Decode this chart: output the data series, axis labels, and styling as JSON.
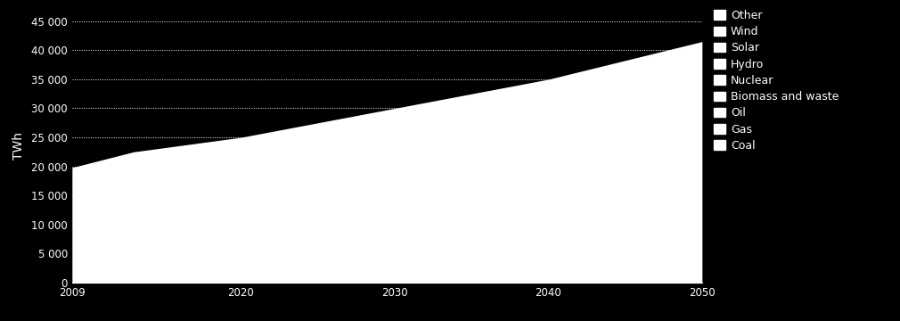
{
  "years": [
    2009,
    2013,
    2020,
    2030,
    2040,
    2050
  ],
  "total_values": [
    19800,
    22500,
    25000,
    30000,
    35000,
    41500
  ],
  "background_color": "#000000",
  "plot_bg_color": "#000000",
  "area_color": "#ffffff",
  "ylabel": "TWh",
  "ylim": [
    0,
    47000
  ],
  "yticks": [
    0,
    5000,
    10000,
    15000,
    20000,
    25000,
    30000,
    35000,
    40000,
    45000
  ],
  "ytick_labels": [
    "0",
    "5 000",
    "10 000",
    "15 000",
    "20 000",
    "25 000",
    "30 000",
    "35 000",
    "40 000",
    "45 000"
  ],
  "xticks": [
    2009,
    2020,
    2030,
    2040,
    2050
  ],
  "grid_color": "#ffffff",
  "text_color": "#ffffff",
  "legend_items": [
    "Other",
    "Wind",
    "Solar",
    "Hydro",
    "Nuclear",
    "Biomass and waste",
    "Oil",
    "Gas",
    "Coal"
  ],
  "legend_colors": [
    "#ffffff",
    "#ffffff",
    "#ffffff",
    "#ffffff",
    "#ffffff",
    "#ffffff",
    "#ffffff",
    "#ffffff",
    "#ffffff"
  ],
  "fig_width": 10.1,
  "fig_height": 3.6,
  "dpi": 100
}
